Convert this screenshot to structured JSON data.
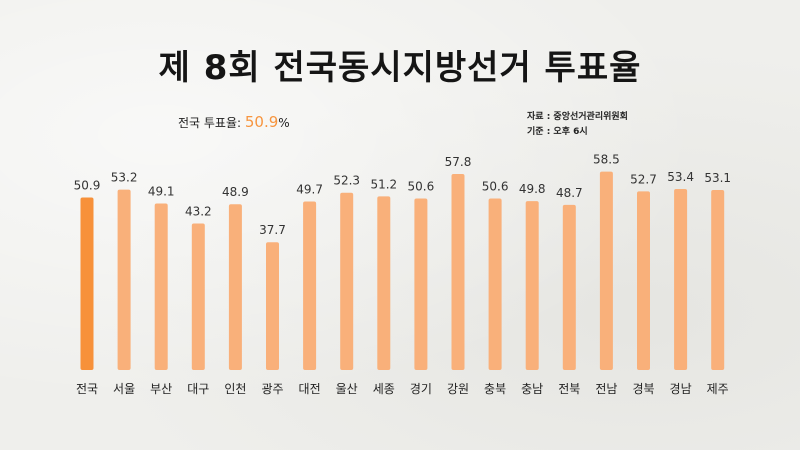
{
  "title": "제 8회 전국동시지방선거 투표율",
  "summary": {
    "label": "전국 투표율:",
    "value": "50.9",
    "unit": "%"
  },
  "source": {
    "line1": "자료 : 중앙선거관리위원회",
    "line2": "기준 : 오후 6시"
  },
  "colors": {
    "highlight": "#f7913a",
    "bar": "#f9b07a",
    "background": "#efefec"
  },
  "chart_data": {
    "type": "bar",
    "title": "제 8회 전국동시지방선거 투표율",
    "categories": [
      "전국",
      "서울",
      "부산",
      "대구",
      "인천",
      "광주",
      "대전",
      "울산",
      "세종",
      "경기",
      "강원",
      "충북",
      "충남",
      "전북",
      "전남",
      "경북",
      "경남",
      "제주"
    ],
    "values": [
      50.9,
      53.2,
      49.1,
      43.2,
      48.9,
      37.7,
      49.7,
      52.3,
      51.2,
      50.6,
      57.8,
      50.6,
      49.8,
      48.7,
      58.5,
      52.7,
      53.4,
      53.1
    ],
    "labels": [
      "50.9",
      "53.2",
      "49.1",
      "43.2",
      "48.9",
      "37.7",
      "49.7",
      "52.3",
      "51.2",
      "50.6",
      "57.8",
      "50.6",
      "49.8",
      "48.7",
      "58.5",
      "52.7",
      "53.4",
      "53.1"
    ],
    "highlight_index": 0,
    "ylim": [
      0,
      60
    ],
    "xlabel": "",
    "ylabel": "",
    "grid": false
  }
}
